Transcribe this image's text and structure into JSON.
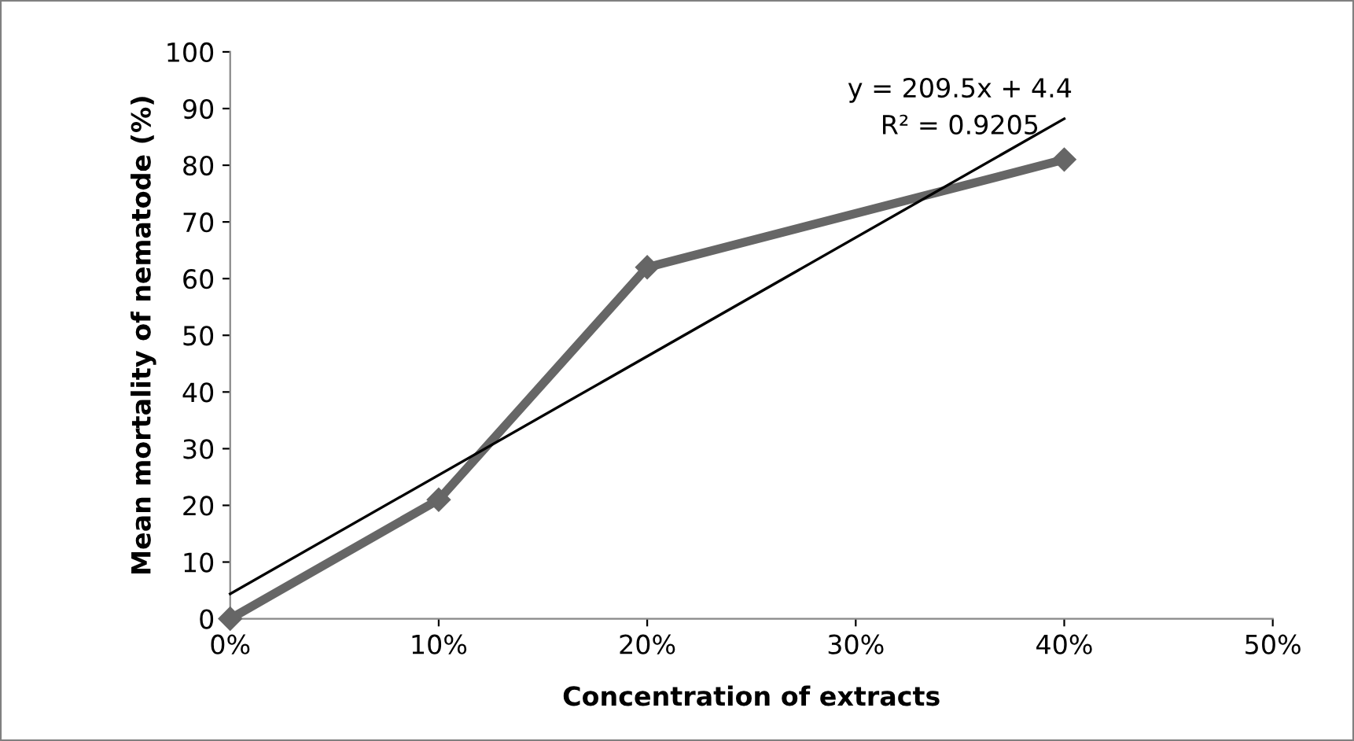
{
  "chart_data": {
    "type": "line",
    "xlabel": "Concentration of extracts",
    "ylabel": "Mean mortality of nematode (%)",
    "series": [
      {
        "color": "#666666",
        "x": [
          0,
          0.1,
          0.2,
          0.4
        ],
        "values": [
          0,
          21,
          62,
          81
        ],
        "marker": "diamond",
        "line_style": "solid"
      },
      {
        "color": "#000000",
        "x": [
          0,
          0.4
        ],
        "values": [
          4.4,
          88.2
        ],
        "marker": "none",
        "line_style": "solid"
      }
    ],
    "annotations": [
      "y = 209.5x + 4.4",
      "R² = 0.9205"
    ],
    "xlim": [
      0,
      0.5
    ],
    "ylim": [
      0,
      100
    ],
    "xticks": [
      {
        "value": 0,
        "label": "0%"
      },
      {
        "value": 0.1,
        "label": "10%"
      },
      {
        "value": 0.2,
        "label": "20%"
      },
      {
        "value": 0.3,
        "label": "30%"
      },
      {
        "value": 0.4,
        "label": "40%"
      },
      {
        "value": 0.5,
        "label": "50%"
      }
    ],
    "yticks": [
      0,
      10,
      20,
      30,
      40,
      50,
      60,
      70,
      80,
      90,
      100
    ],
    "grid": false,
    "legend": false
  }
}
